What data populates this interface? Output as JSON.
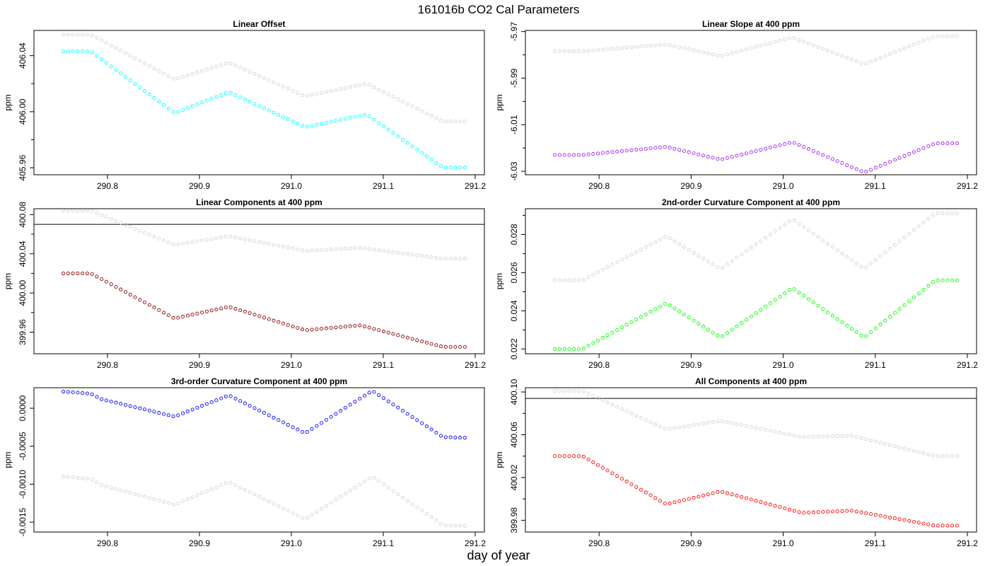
{
  "figure": {
    "title": "161016b   CO2 Cal Parameters",
    "xlabel": "day of year",
    "gray_color": "#d3d3d3"
  },
  "chart_data": [
    {
      "type": "scatter",
      "title": "Linear Offset",
      "ylabel": "ppm",
      "xlim": [
        290.72,
        291.21
      ],
      "ylim": [
        405.955,
        406.058
      ],
      "xticks": [
        "290.8",
        "290.9",
        "291.0",
        "291.1",
        "291.2"
      ],
      "yticks": [
        "405.96",
        "406.00",
        "406.04"
      ],
      "yminor": [
        405.98,
        406.02
      ],
      "hline": null,
      "series": [
        {
          "color": "#d3d3d3",
          "anchors": [
            [
              290.752,
              406.055
            ],
            [
              290.782,
              406.055
            ],
            [
              290.873,
              406.023
            ],
            [
              290.932,
              406.035
            ],
            [
              291.015,
              406.011
            ],
            [
              291.082,
              406.02
            ],
            [
              291.165,
              405.993
            ],
            [
              291.19,
              405.993
            ]
          ]
        },
        {
          "color": "#00ffff",
          "anchors": [
            [
              290.752,
              406.043
            ],
            [
              290.782,
              406.043
            ],
            [
              290.873,
              405.999
            ],
            [
              290.932,
              406.014
            ],
            [
              291.015,
              405.989
            ],
            [
              291.082,
              405.998
            ],
            [
              291.165,
              405.96
            ],
            [
              291.19,
              405.96
            ]
          ]
        }
      ]
    },
    {
      "type": "scatter",
      "title": "Linear Slope at 400 ppm",
      "ylabel": "ppm",
      "xlim": [
        290.72,
        291.21
      ],
      "ylim": [
        -6.0315,
        -5.9695
      ],
      "xticks": [
        "290.8",
        "290.9",
        "291.0",
        "291.1",
        "291.2"
      ],
      "yticks": [
        "-6.03",
        "-6.01",
        "-5.99",
        "-5.97"
      ],
      "yminor": [
        -6.02,
        -6.0,
        -5.98
      ],
      "hline": null,
      "series": [
        {
          "color": "#d3d3d3",
          "anchors": [
            [
              290.752,
              -5.9785
            ],
            [
              290.782,
              -5.9785
            ],
            [
              290.873,
              -5.9755
            ],
            [
              290.932,
              -5.9805
            ],
            [
              291.01,
              -5.9725
            ],
            [
              291.088,
              -5.984
            ],
            [
              291.165,
              -5.972
            ],
            [
              291.19,
              -5.972
            ]
          ]
        },
        {
          "color": "#a020f0",
          "anchors": [
            [
              290.752,
              -6.023
            ],
            [
              290.782,
              -6.023
            ],
            [
              290.873,
              -6.0195
            ],
            [
              290.932,
              -6.025
            ],
            [
              291.01,
              -6.0175
            ],
            [
              291.088,
              -6.0305
            ],
            [
              291.165,
              -6.018
            ],
            [
              291.19,
              -6.018
            ]
          ]
        }
      ]
    },
    {
      "type": "scatter",
      "title": "Linear Components at 400 ppm",
      "ylabel": "ppm",
      "xlim": [
        290.72,
        291.21
      ],
      "ylim": [
        399.938,
        400.086
      ],
      "xticks": [
        "290.8",
        "290.9",
        "291.0",
        "291.1",
        "291.2"
      ],
      "yticks": [
        "399.96",
        "400.00",
        "400.04",
        "400.08"
      ],
      "yminor": [
        399.98,
        400.02,
        400.06
      ],
      "hline": 400.07,
      "series": [
        {
          "color": "#d3d3d3",
          "anchors": [
            [
              290.752,
              400.084
            ],
            [
              290.782,
              400.084
            ],
            [
              290.873,
              400.049
            ],
            [
              290.932,
              400.058
            ],
            [
              291.015,
              400.043
            ],
            [
              291.075,
              400.046
            ],
            [
              291.165,
              400.035
            ],
            [
              291.19,
              400.035
            ]
          ]
        },
        {
          "color": "#8b0000",
          "anchors": [
            [
              290.752,
              400.02
            ],
            [
              290.782,
              400.02
            ],
            [
              290.873,
              399.974
            ],
            [
              290.932,
              399.986
            ],
            [
              291.015,
              399.962
            ],
            [
              291.075,
              399.967
            ],
            [
              291.165,
              399.945
            ],
            [
              291.19,
              399.945
            ]
          ]
        }
      ]
    },
    {
      "type": "scatter",
      "title": "2nd-order Curvature Component at 400 ppm",
      "ylabel": "ppm",
      "xlim": [
        290.72,
        291.21
      ],
      "ylim": [
        0.02175,
        0.02935
      ],
      "xticks": [
        "290.8",
        "290.9",
        "291.0",
        "291.1",
        "291.2"
      ],
      "yticks": [
        "0.022",
        "0.024",
        "0.026",
        "0.028"
      ],
      "yminor": [
        0.023,
        0.025,
        0.027,
        0.029
      ],
      "hline": null,
      "series": [
        {
          "color": "#d3d3d3",
          "anchors": [
            [
              290.752,
              0.0256
            ],
            [
              290.782,
              0.0256
            ],
            [
              290.873,
              0.0279
            ],
            [
              290.932,
              0.0262
            ],
            [
              291.01,
              0.0288
            ],
            [
              291.088,
              0.0262
            ],
            [
              291.165,
              0.0291
            ],
            [
              291.19,
              0.0291
            ]
          ]
        },
        {
          "color": "#00ff00",
          "anchors": [
            [
              290.752,
              0.022
            ],
            [
              290.782,
              0.022
            ],
            [
              290.873,
              0.0244
            ],
            [
              290.932,
              0.0226
            ],
            [
              291.01,
              0.0252
            ],
            [
              291.088,
              0.0226
            ],
            [
              291.165,
              0.0256
            ],
            [
              291.19,
              0.0256
            ]
          ]
        }
      ]
    },
    {
      "type": "scatter",
      "title": "3rd-order Curvature Component at 400 ppm",
      "ylabel": "ppm",
      "xlim": [
        290.72,
        291.21
      ],
      "ylim": [
        -0.00163,
        0.00027
      ],
      "xticks": [
        "290.8",
        "290.9",
        "291.0",
        "291.1",
        "291.2"
      ],
      "yticks": [
        "-0.0015",
        "-0.0010",
        "-0.0005",
        "0.0000"
      ],
      "yminor": [],
      "hline": null,
      "series": [
        {
          "color": "#d3d3d3",
          "anchors": [
            [
              290.752,
              -0.0009
            ],
            [
              290.782,
              -0.00093
            ],
            [
              290.793,
              -0.00101
            ],
            [
              290.873,
              -0.00127
            ],
            [
              290.932,
              -0.00097
            ],
            [
              291.015,
              -0.00146
            ],
            [
              291.088,
              -0.0009
            ],
            [
              291.165,
              -0.00154
            ],
            [
              291.19,
              -0.00155
            ]
          ]
        },
        {
          "color": "#0000ff",
          "anchors": [
            [
              290.752,
              0.00022
            ],
            [
              290.782,
              0.00019
            ],
            [
              290.793,
              0.00012
            ],
            [
              290.873,
              -0.00011
            ],
            [
              290.932,
              0.00017
            ],
            [
              291.015,
              -0.00033
            ],
            [
              291.088,
              0.00023
            ],
            [
              291.165,
              -0.00038
            ],
            [
              291.19,
              -0.00039
            ]
          ]
        }
      ]
    },
    {
      "type": "scatter",
      "title": "All Components at 400 ppm",
      "ylabel": "ppm",
      "xlim": [
        290.72,
        291.21
      ],
      "ylim": [
        399.969,
        400.104
      ],
      "xticks": [
        "290.8",
        "290.9",
        "291.0",
        "291.1",
        "291.2"
      ],
      "yticks": [
        "399.98",
        "400.02",
        "400.06",
        "400.10"
      ],
      "yminor": [
        400.0,
        400.04,
        400.08
      ],
      "hline": 400.094,
      "series": [
        {
          "color": "#d3d3d3",
          "anchors": [
            [
              290.752,
              400.101
            ],
            [
              290.782,
              400.101
            ],
            [
              290.873,
              400.065
            ],
            [
              290.932,
              400.073
            ],
            [
              291.02,
              400.058
            ],
            [
              291.075,
              400.059
            ],
            [
              291.165,
              400.04
            ],
            [
              291.19,
              400.04
            ]
          ]
        },
        {
          "color": "#ff0000",
          "anchors": [
            [
              290.752,
              400.04
            ],
            [
              290.782,
              400.04
            ],
            [
              290.873,
              399.995
            ],
            [
              290.932,
              400.007
            ],
            [
              291.02,
              399.987
            ],
            [
              291.075,
              399.989
            ],
            [
              291.165,
              399.975
            ],
            [
              291.19,
              399.975
            ]
          ]
        }
      ]
    }
  ]
}
